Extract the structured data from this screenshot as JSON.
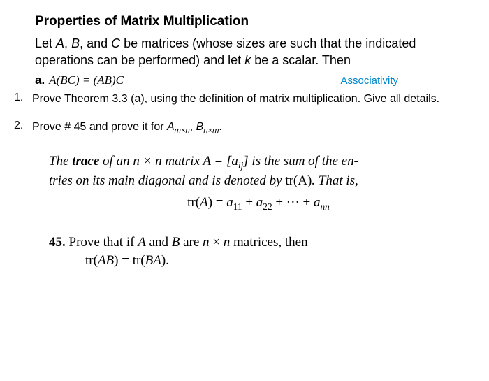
{
  "title": "Properties of Matrix Multiplication",
  "intro_part1": "Let ",
  "intro_A": "A",
  "intro_comma1": ", ",
  "intro_B": "B",
  "intro_comma2": ", and ",
  "intro_C": "C",
  "intro_part2": " be matrices (whose sizes are such that the indicated operations can be performed) and let ",
  "intro_k": "k",
  "intro_part3": " be a scalar. Then",
  "property_a_letter": "a.",
  "property_a_eq": "A(BC) = (AB)C",
  "property_a_label": "Associativity",
  "q1_num": "1.",
  "q1_text": "Prove Theorem 3.3 (a), using the definition of matrix multiplication. Give all details.",
  "q2_num": "2.",
  "q2_prefix": "Prove # 45 and prove it for ",
  "q2_A": "A",
  "q2_Asub": "m×n",
  "q2_comma": ", ",
  "q2_B": "B",
  "q2_Bsub": "n×m",
  "q2_period": ".",
  "def_line1_a": "The ",
  "def_trace": "trace",
  "def_line1_b": " of an n × n matrix A = [a",
  "def_sub_ij": "ij",
  "def_line1_c": "] is the sum of the en-",
  "def_line2": "tries on its main diagonal and is denoted by ",
  "def_tr": "tr(A)",
  "def_line2_end": ". That is,",
  "formula_tr": "tr(",
  "formula_A": "A",
  "formula_close": ") = ",
  "formula_a11": "a",
  "formula_sub11": "11",
  "formula_plus1": " + ",
  "formula_a22": "a",
  "formula_sub22": "22",
  "formula_plus2": " + ··· + ",
  "formula_ann": "a",
  "formula_subnn": "nn",
  "p45_num": "45.",
  "p45_text": " Prove that if ",
  "p45_A": "A",
  "p45_and": " and ",
  "p45_B": "B",
  "p45_are": " are ",
  "p45_n": "n",
  "p45_times": " × ",
  "p45_n2": "n",
  "p45_end": " matrices, then",
  "p45_formula": "tr(AB) = tr(BA).",
  "colors": {
    "text": "#000000",
    "link": "#0088cc",
    "background": "#ffffff"
  }
}
